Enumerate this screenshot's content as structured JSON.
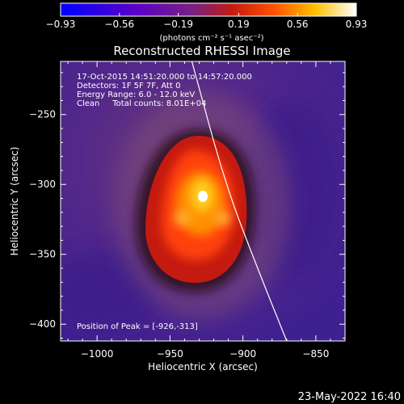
{
  "chart_data": {
    "type": "heatmap",
    "title": "Reconstructed RHESSI Image",
    "xlabel": "Heliocentric X (arcsec)",
    "ylabel": "Heliocentric Y (arcsec)",
    "xlim": [
      -1025,
      -830
    ],
    "ylim": [
      -412,
      -212
    ],
    "xticks": [
      -1000,
      -950,
      -900,
      -850
    ],
    "xtick_labels": [
      "−1000",
      "−950",
      "−900",
      "−850"
    ],
    "yticks": [
      -250,
      -300,
      -350,
      -400
    ],
    "ytick_labels": [
      "−250",
      "−300",
      "−350",
      "−400"
    ],
    "colorbar": {
      "range": [
        -0.93,
        0.93
      ],
      "ticks": [
        -0.93,
        -0.56,
        -0.19,
        0.19,
        0.56,
        0.93
      ],
      "tick_labels": [
        "−0.93",
        "−0.56",
        "−0.19",
        "0.19",
        "0.56",
        "0.93"
      ],
      "units": "(photons cm⁻² s⁻¹ asec⁻²)",
      "colors": [
        "#0000ff",
        "#5a00c8",
        "#7a2080",
        "#c41a10",
        "#ff5000",
        "#ffc000",
        "#ffffff"
      ]
    },
    "info_lines": [
      "17-Oct-2015 14:51:20.000 to 14:57:20.000",
      "Detectors: 1F 5F 7F, Att 0",
      "Energy Range: 6.0 - 12.0 keV",
      "Clean     Total counts: 8.01E+04"
    ],
    "peak_text": "Position of Peak = [-926,-313]",
    "peak_position": [
      -926,
      -313
    ],
    "limb_curve": [
      [
        -935,
        -212
      ],
      [
        -912,
        -300
      ],
      [
        -890,
        -360
      ],
      [
        -870,
        -412
      ]
    ],
    "date_stamp": "23-May-2022 16:40"
  }
}
